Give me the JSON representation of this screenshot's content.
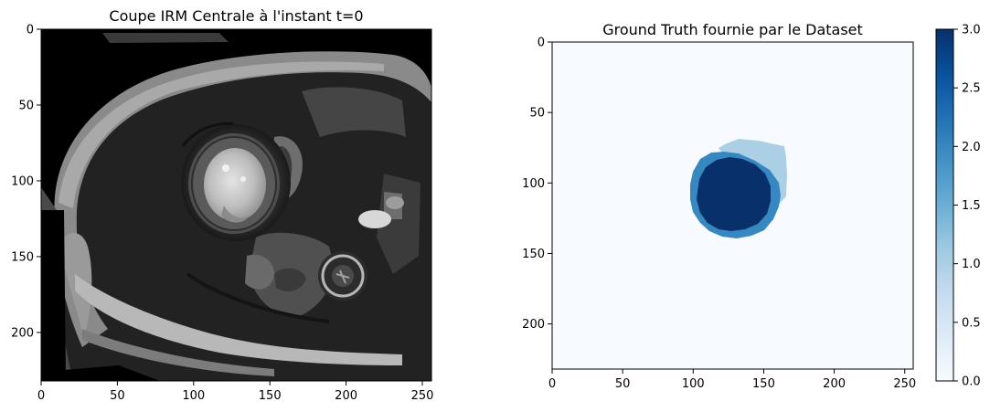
{
  "panels": [
    {
      "title": "Coupe IRM Centrale à l'instant t=0",
      "xticks": [
        "0",
        "50",
        "100",
        "150",
        "200",
        "250"
      ],
      "yticks": [
        "0",
        "50",
        "100",
        "150",
        "200"
      ],
      "xlim": [
        0,
        256
      ],
      "ylim": [
        232,
        0
      ],
      "colormap": "gray"
    },
    {
      "title": "Ground Truth fournie par le Dataset",
      "xticks": [
        "0",
        "50",
        "100",
        "150",
        "200",
        "250"
      ],
      "yticks": [
        "0",
        "50",
        "100",
        "150",
        "200"
      ],
      "xlim": [
        0,
        256
      ],
      "ylim": [
        232,
        0
      ],
      "colormap": "Blues"
    }
  ],
  "colorbar": {
    "ticks": [
      "0.0",
      "0.5",
      "1.0",
      "1.5",
      "2.0",
      "2.5",
      "3.0"
    ],
    "range": [
      0,
      3
    ]
  },
  "colors": {
    "blues_0": "#f7fbff",
    "blues_1": "#abd0e6",
    "blues_2": "#3787c0",
    "blues_3": "#08306b"
  }
}
